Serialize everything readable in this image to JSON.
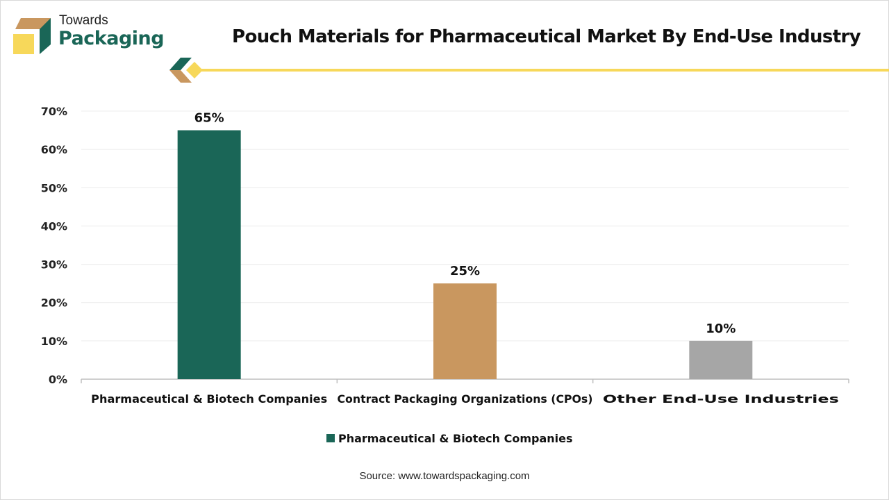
{
  "brand": {
    "line1": "Towards",
    "line2": "Packaging"
  },
  "colors": {
    "green": "#1a6657",
    "tan": "#c9975f",
    "gray": "#a6a6a6",
    "yellow": "#f7d85a"
  },
  "chart_data": {
    "type": "bar",
    "title": "Pouch Materials for Pharmaceutical Market By End-Use Industry",
    "categories": [
      "Pharmaceutical & Biotech Companies",
      "Contract Packaging Organizations (CPOs)",
      "Other End-Use Industries"
    ],
    "values": [
      65,
      25,
      10
    ],
    "data_labels": [
      "65%",
      "25%",
      "10%"
    ],
    "bar_colors": [
      "#1a6657",
      "#c9975f",
      "#a6a6a6"
    ],
    "yticks": [
      "0%",
      "10%",
      "20%",
      "30%",
      "40%",
      "50%",
      "60%",
      "70%"
    ],
    "ylim": [
      0,
      70
    ],
    "xlabel": "",
    "ylabel": "",
    "grid": true,
    "legend": {
      "position": "bottom",
      "entries": [
        "Pharmaceutical & Biotech Companies"
      ]
    }
  },
  "source": "Source: www.towardspackaging.com"
}
